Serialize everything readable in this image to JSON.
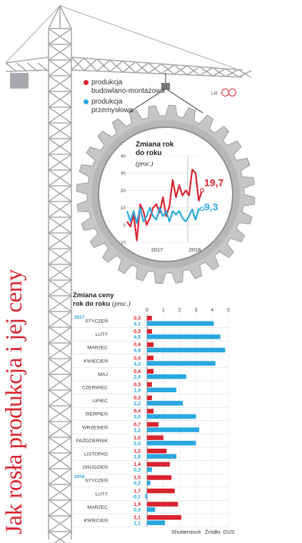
{
  "title": "Jak rosła produkcja i jej ceny",
  "legend": [
    {
      "label_lines": [
        "produkcja",
        "budowlano-montażowa"
      ],
      "color": "#d9232e"
    },
    {
      "label_lines": [
        "produkcja",
        "przemysłowa"
      ],
      "color": "#29a8e0"
    }
  ],
  "brand": "LR",
  "footer": {
    "source": "Shutterstock",
    "data_source": "Źródło: GUS"
  },
  "colors": {
    "red": "#d9232e",
    "blue": "#29a8e0",
    "crane": "#a7a9ac",
    "gear": "#c4c6c8"
  },
  "chart_data": [
    {
      "type": "line",
      "title_lines": [
        "Zmiana rok",
        "do roku"
      ],
      "unit": "(proc.)",
      "ylim": [
        -10,
        40
      ],
      "yticks": [
        "-10",
        "0",
        "10",
        "20",
        "30",
        "40"
      ],
      "xlabels": [
        "2017",
        "2018"
      ],
      "series": [
        {
          "name": "produkcja budowlano-montażowa",
          "color": "#d9232e",
          "end_label": "19,7",
          "values": [
            2,
            -1,
            6,
            -9,
            12,
            8,
            0,
            4,
            10,
            12,
            7,
            16,
            5,
            11,
            26,
            16,
            23,
            17,
            20,
            17,
            32,
            30,
            14,
            20
          ]
        },
        {
          "name": "produkcja przemysłowa",
          "color": "#29a8e0",
          "end_label": "9,3",
          "values": [
            8,
            2,
            8,
            1,
            10,
            2,
            5,
            10,
            5,
            3,
            10,
            5,
            8,
            2,
            8,
            6,
            8,
            4,
            2,
            5,
            9,
            3,
            9,
            9.3
          ]
        }
      ],
      "grid": true
    },
    {
      "type": "bar",
      "title_lines": [
        "Zmiana ceny",
        "rok do roku"
      ],
      "unit": "(proc.)",
      "xlim": [
        0,
        5
      ],
      "xticks": [
        "0",
        "1",
        "2",
        "3",
        "4",
        "5"
      ],
      "categories": [
        {
          "year": "2017",
          "month": "STYCZEŃ",
          "red": 0.3,
          "blue": 4.1,
          "red_label": "0,3",
          "blue_label": "4,1"
        },
        {
          "year": "",
          "month": "LUTY",
          "red": 0.3,
          "blue": 4.5,
          "red_label": "0,3",
          "blue_label": "4,5"
        },
        {
          "year": "",
          "month": "MARZEC",
          "red": 0.4,
          "blue": 4.8,
          "red_label": "0,4",
          "blue_label": "4,8"
        },
        {
          "year": "",
          "month": "KWIECIEŃ",
          "red": 0.4,
          "blue": 4.2,
          "red_label": "0,4",
          "blue_label": "4,2"
        },
        {
          "year": "",
          "month": "MAJ",
          "red": 0.4,
          "blue": 2.4,
          "red_label": "0,4",
          "blue_label": "2,4"
        },
        {
          "year": "",
          "month": "CZERWIEC",
          "red": 0.3,
          "blue": 1.8,
          "red_label": "0,3",
          "blue_label": "1,8"
        },
        {
          "year": "",
          "month": "LIPIEC",
          "red": 0.3,
          "blue": 2.2,
          "red_label": "0,3",
          "blue_label": "2,2"
        },
        {
          "year": "",
          "month": "SIERPIEŃ",
          "red": 0.4,
          "blue": 3.0,
          "red_label": "0,4",
          "blue_label": "3,0"
        },
        {
          "year": "",
          "month": "WRZESIEŃ",
          "red": 0.7,
          "blue": 3.2,
          "red_label": "0,7",
          "blue_label": "3,2"
        },
        {
          "year": "",
          "month": "PAŹDZIERNIK",
          "red": 1.0,
          "blue": 3.0,
          "red_label": "1,0",
          "blue_label": "3,0"
        },
        {
          "year": "",
          "month": "LISTOPAD",
          "red": 1.2,
          "blue": 1.8,
          "red_label": "1,2",
          "blue_label": "1,8"
        },
        {
          "year": "",
          "month": "GRUDZIEŃ",
          "red": 1.4,
          "blue": 0.3,
          "red_label": "1,4",
          "blue_label": "0,3"
        },
        {
          "year": "2018",
          "month": "STYCZEŃ",
          "red": 1.5,
          "blue": 0.2,
          "red_label": "1,5",
          "blue_label": "0,2"
        },
        {
          "year": "",
          "month": "LUTY",
          "red": 1.7,
          "blue": -0.1,
          "red_label": "1,7",
          "blue_label": "-0,1"
        },
        {
          "year": "",
          "month": "MARZEC",
          "red": 1.9,
          "blue": 0.5,
          "red_label": "1,9",
          "blue_label": "0,5"
        },
        {
          "year": "",
          "month": "KWIECIEŃ",
          "red": 2.1,
          "blue": 1.1,
          "red_label": "2,1",
          "blue_label": "1,1"
        }
      ],
      "grid": true
    }
  ]
}
